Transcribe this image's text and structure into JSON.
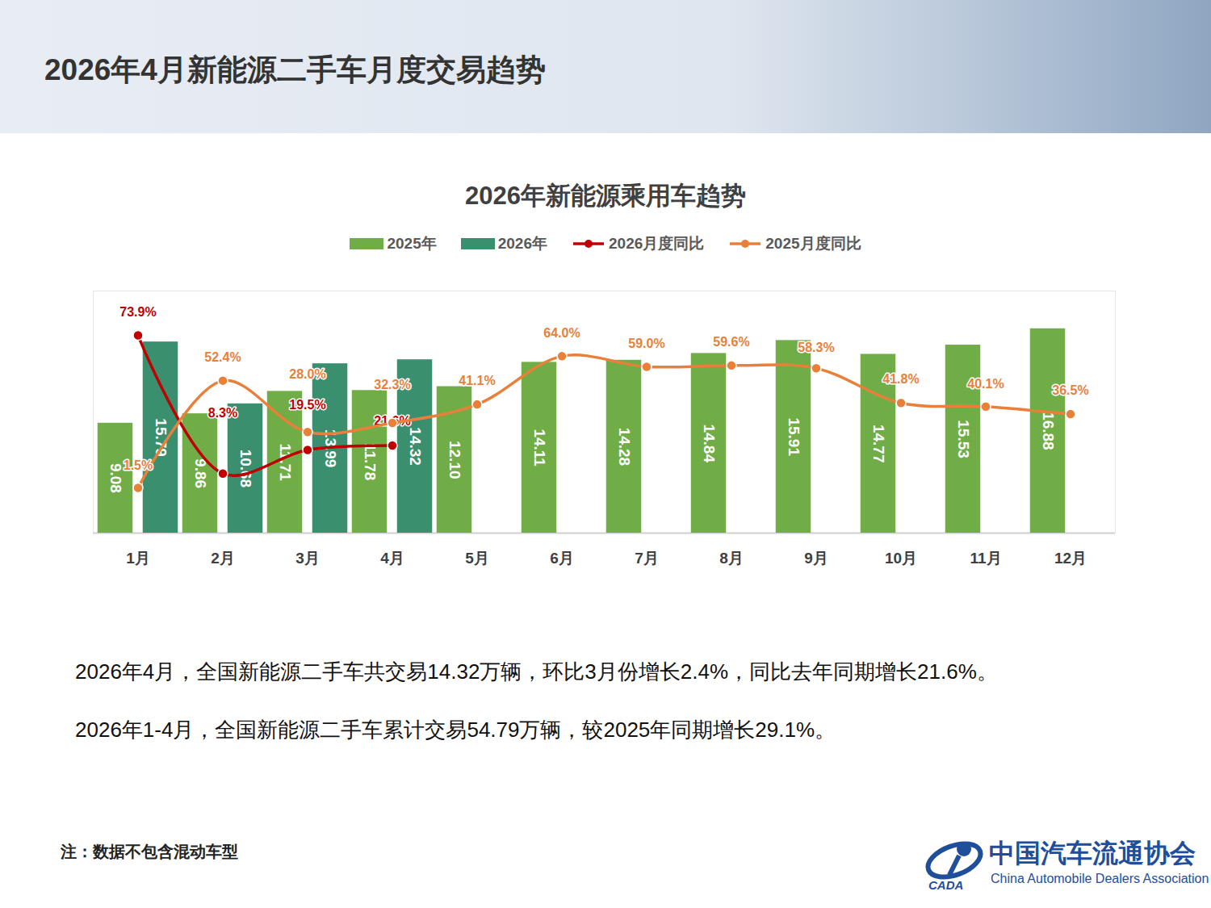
{
  "header": {
    "title": "2026年4月新能源二手车月度交易趋势"
  },
  "chart_data": {
    "type": "bar",
    "title": "2026年新能源乘用车趋势",
    "categories": [
      "1月",
      "2月",
      "3月",
      "4月",
      "5月",
      "6月",
      "7月",
      "8月",
      "9月",
      "10月",
      "11月",
      "12月"
    ],
    "series": [
      {
        "name": "2025年",
        "type": "bar",
        "color": "#70AD47",
        "values": [
          9.08,
          9.86,
          11.71,
          11.78,
          12.1,
          14.11,
          14.28,
          14.84,
          15.91,
          14.77,
          15.53,
          16.88
        ],
        "value_labels": [
          "9.08",
          "9.86",
          "11.71",
          "11.78",
          "12.10",
          "14.11",
          "14.28",
          "14.84",
          "15.91",
          "14.77",
          "15.53",
          "16.88"
        ]
      },
      {
        "name": "2026年",
        "type": "bar",
        "color": "#3A8F6E",
        "values": [
          15.79,
          10.68,
          13.99,
          14.32,
          null,
          null,
          null,
          null,
          null,
          null,
          null,
          null
        ],
        "value_labels": [
          "15.79",
          "10.68",
          "13.99",
          "14.32",
          null,
          null,
          null,
          null,
          null,
          null,
          null,
          null
        ]
      },
      {
        "name": "2026月度同比",
        "type": "line",
        "axis": "y2",
        "color": "#C00000",
        "marker": "circle",
        "values": [
          73.9,
          8.3,
          19.5,
          21.6,
          null,
          null,
          null,
          null,
          null,
          null,
          null,
          null
        ],
        "value_labels": [
          "73.9%",
          "8.3%",
          "19.5%",
          "21.6%",
          null,
          null,
          null,
          null,
          null,
          null,
          null,
          null
        ]
      },
      {
        "name": "2025月度同比",
        "type": "line",
        "axis": "y2",
        "color": "#E8803A",
        "marker": "circle",
        "values": [
          1.5,
          52.4,
          28.0,
          32.3,
          41.1,
          64.0,
          59.0,
          59.6,
          58.3,
          41.8,
          40.1,
          36.5
        ],
        "value_labels": [
          "1.5%",
          "52.4%",
          "28.0%",
          "32.3%",
          "41.1%",
          "64.0%",
          "59.0%",
          "59.6%",
          "58.3%",
          "41.8%",
          "40.1%",
          "36.5%"
        ]
      }
    ],
    "ylim": [
      0,
      20
    ],
    "yticks": [],
    "y2lim": [
      -20,
      95
    ],
    "y2ticks": [],
    "tick_labels": "x",
    "data_labels": true,
    "legend": "top",
    "grid": false
  },
  "paragraphs": [
    "2026年4月，全国新能源二手车共交易14.32万辆，环比3月份增长2.4%，同比去年同期增长21.6%。",
    "2026年1-4月，全国新能源二手车累计交易54.79万辆，较2025年同期增长29.1%。"
  ],
  "note": "注：数据不包含混动车型",
  "logo": {
    "name": "中国汽车流通协会",
    "name_en": "China Automobile Dealers Association",
    "abbr": "CADA"
  }
}
